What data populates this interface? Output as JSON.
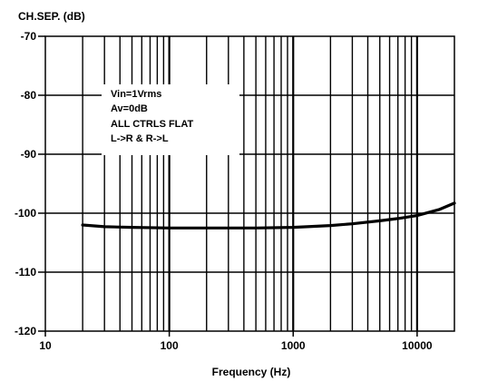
{
  "chart_data": {
    "type": "line",
    "title": "",
    "ylabel": "CH.SEP. (dB)",
    "xlabel": "Frequency (Hz)",
    "x_scale": "log",
    "xlim": [
      10,
      20000
    ],
    "ylim": [
      -120,
      -70
    ],
    "x_ticks": [
      {
        "value": 10,
        "label": "10"
      },
      {
        "value": 100,
        "label": "100"
      },
      {
        "value": 1000,
        "label": "1000"
      },
      {
        "value": 10000,
        "label": "10000"
      }
    ],
    "y_ticks": [
      {
        "value": -70,
        "label": "-70"
      },
      {
        "value": -80,
        "label": "-80"
      },
      {
        "value": -90,
        "label": "-90"
      },
      {
        "value": -100,
        "label": "-100"
      },
      {
        "value": -110,
        "label": "-110"
      },
      {
        "value": -120,
        "label": "-120"
      }
    ],
    "grid": true,
    "annotation_lines": [
      "Vin=1Vrms",
      "Av=0dB",
      "ALL CTRLS FLAT",
      "L->R & R->L"
    ],
    "series": [
      {
        "x": [
          20,
          30,
          50,
          100,
          200,
          500,
          1000,
          2000,
          3000,
          5000,
          7000,
          10000,
          15000,
          20000
        ],
        "y": [
          -102,
          -102.3,
          -102.4,
          -102.5,
          -102.5,
          -102.5,
          -102.4,
          -102.1,
          -101.8,
          -101.3,
          -100.9,
          -100.4,
          -99.4,
          -98.3
        ]
      }
    ]
  }
}
